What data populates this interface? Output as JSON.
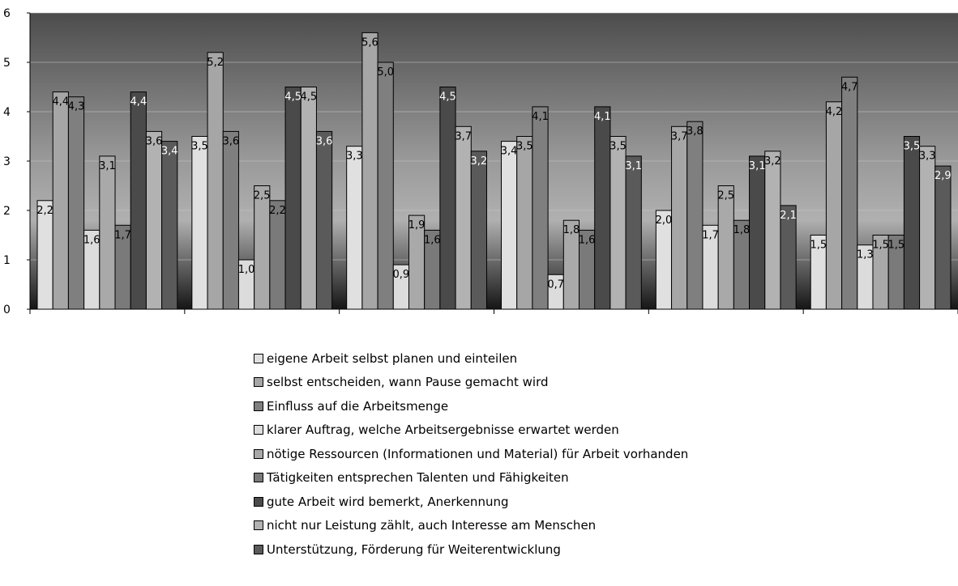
{
  "chart_data": {
    "type": "bar",
    "title": "",
    "xlabel": "",
    "ylabel": "",
    "ylim": [
      0,
      6
    ],
    "y_ticks": [
      "0",
      "1",
      "2",
      "3",
      "4",
      "5",
      "6"
    ],
    "grid": true,
    "legend_position": "bottom",
    "categories": [
      "",
      "",
      "",
      "",
      "",
      ""
    ],
    "series": [
      {
        "name": "eigene Arbeit selbst planen und einteilen",
        "color": "#e0e0e0",
        "values": [
          2.2,
          3.5,
          3.3,
          3.4,
          2.0,
          1.5
        ],
        "labels": [
          "2,2",
          "3,5",
          "3,3",
          "3,4",
          "2,0",
          "1,5"
        ]
      },
      {
        "name": "selbst entscheiden, wann Pause gemacht wird",
        "color": "#a6a6a6",
        "values": [
          4.4,
          5.2,
          5.6,
          3.5,
          3.7,
          4.2
        ],
        "labels": [
          "4,4",
          "5,2",
          "5,6",
          "3,5",
          "3,7",
          "4,2"
        ]
      },
      {
        "name": "Einfluss auf die Arbeitsmenge",
        "color": "#7f7f7f",
        "values": [
          4.3,
          3.6,
          5.0,
          4.1,
          3.8,
          4.7
        ],
        "labels": [
          "4,3",
          "3,6",
          "5,0",
          "4,1",
          "3,8",
          "4,7"
        ]
      },
      {
        "name": "klarer Auftrag, welche Arbeitsergebnisse erwartet werden",
        "color": "#dcdcdc",
        "values": [
          1.6,
          1.0,
          0.9,
          0.7,
          1.7,
          1.3
        ],
        "labels": [
          "1,6",
          "1,0",
          "0,9",
          "0,7",
          "1,7",
          "1,3"
        ]
      },
      {
        "name": "nötige Ressourcen (Informationen und Material) für Arbeit vorhanden",
        "color": "#a9a9a9",
        "values": [
          3.1,
          2.5,
          1.9,
          1.8,
          2.5,
          1.5
        ],
        "labels": [
          "3,1",
          "2,5",
          "1,9",
          "1,8",
          "2,5",
          "1,5"
        ]
      },
      {
        "name": "Tätigkeiten entsprechen Talenten und Fähigkeiten",
        "color": "#7a7a7a",
        "values": [
          1.7,
          2.2,
          1.6,
          1.6,
          1.8,
          1.5
        ],
        "labels": [
          "1,7",
          "2,2",
          "1,6",
          "1,6",
          "1,8",
          "1,5"
        ]
      },
      {
        "name": "gute Arbeit wird bemerkt, Anerkennung",
        "color": "#4a4a4a",
        "values": [
          4.4,
          4.5,
          4.5,
          4.1,
          3.1,
          3.5
        ],
        "labels": [
          "4,4",
          "4,5",
          "4,5",
          "4,1",
          "3,1",
          "3,5"
        ]
      },
      {
        "name": "nicht nur Leistung zählt, auch Interesse am Menschen",
        "color": "#b2b2b2",
        "values": [
          3.6,
          4.5,
          3.7,
          3.5,
          3.2,
          3.3
        ],
        "labels": [
          "3,6",
          "4,5",
          "3,7",
          "3,5",
          "3,2",
          "3,3"
        ]
      },
      {
        "name": "Unterstützung, Förderung für Weiterentwicklung",
        "color": "#5a5a5a",
        "values": [
          3.4,
          3.6,
          3.2,
          3.1,
          2.1,
          2.9
        ],
        "labels": [
          "3,4",
          "3,6",
          "3,2",
          "3,1",
          "2,1",
          "2,9"
        ]
      }
    ]
  }
}
